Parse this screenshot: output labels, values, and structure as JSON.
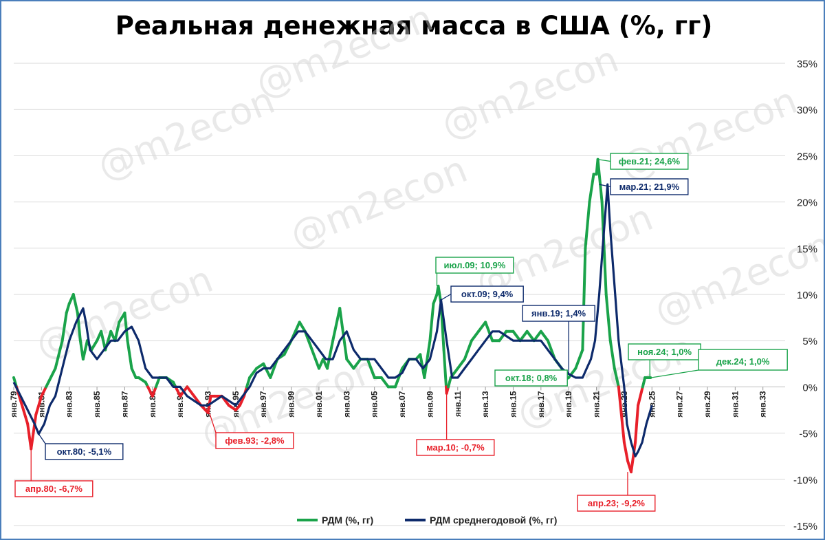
{
  "chart_data": {
    "type": "line",
    "title": "Реальная денежная масса в США (%, гг)",
    "watermark": "@m2econ",
    "ylim": [
      -15,
      35
    ],
    "yticks": [
      -15,
      -10,
      -5,
      0,
      5,
      10,
      15,
      20,
      25,
      30,
      35
    ],
    "ytick_labels": [
      "-15%",
      "-10%",
      "-5%",
      "0%",
      "5%",
      "10%",
      "15%",
      "20%",
      "25%",
      "30%",
      "35%"
    ],
    "xlim": [
      1979,
      2034.6
    ],
    "xtick_labels": [
      "янв.79",
      "янв.81",
      "янв.83",
      "янв.85",
      "янв.87",
      "янв.89",
      "янв.91",
      "янв.93",
      "янв.95",
      "янв.97",
      "янв.99",
      "янв.01",
      "янв.03",
      "янв.05",
      "янв.07",
      "янв.09",
      "янв.11",
      "янв.13",
      "янв.15",
      "янв.17",
      "янв.19",
      "янв.21",
      "янв.23",
      "янв.25",
      "янв.27",
      "янв.29",
      "янв.31",
      "янв.33"
    ],
    "grid": true,
    "legend_position": "bottom",
    "colors": {
      "positive": "#1aa34a",
      "negative": "#e8202a",
      "average": "#0d2a6b"
    },
    "series": [
      {
        "name": "РДМ (%, гг)",
        "x": [
          1979,
          1979.5,
          1980,
          1980.25,
          1980.6,
          1981,
          1981.5,
          1982,
          1982.5,
          1982.8,
          1983,
          1983.3,
          1983.6,
          1983.8,
          1984,
          1984.3,
          1984.6,
          1985,
          1985.3,
          1985.6,
          1986,
          1986.3,
          1986.6,
          1987,
          1987.2,
          1987.5,
          1987.8,
          1988,
          1988.5,
          1989,
          1989.5,
          1990,
          1990.5,
          1991,
          1991.5,
          1992,
          1992.5,
          1993,
          1993.2,
          1993.5,
          1994,
          1994.5,
          1995,
          1995.3,
          1995.6,
          1996,
          1996.5,
          1997,
          1997.5,
          1998,
          1998.5,
          1999,
          1999.3,
          1999.6,
          2000,
          2000.5,
          2001,
          2001.3,
          2001.6,
          2002,
          2002.5,
          2003,
          2003.5,
          2004,
          2004.5,
          2005,
          2005.5,
          2006,
          2006.5,
          2007,
          2007.5,
          2008,
          2008.3,
          2008.6,
          2009,
          2009.25,
          2009.5,
          2009.6,
          2009.8,
          2010,
          2010.2,
          2010.5,
          2011,
          2011.5,
          2012,
          2012.5,
          2013,
          2013.5,
          2014,
          2014.5,
          2015,
          2015.5,
          2016,
          2016.5,
          2017,
          2017.5,
          2018,
          2018.5,
          2018.75,
          2019,
          2019.5,
          2020,
          2020.2,
          2020.5,
          2020.8,
          2021,
          2021.1,
          2021.4,
          2021.7,
          2022,
          2022.3,
          2022.6,
          2023,
          2023.25,
          2023.5,
          2023.8,
          2024,
          2024.5,
          2024.9
        ],
        "values": [
          1,
          -1.5,
          -4,
          -6.7,
          -3,
          -1,
          0.5,
          2,
          5,
          8,
          9,
          10,
          8,
          5,
          3,
          5,
          4,
          5,
          6,
          4,
          6,
          5,
          7,
          8,
          5,
          2,
          1,
          1,
          0.5,
          -1,
          1,
          1,
          0.5,
          -1,
          0,
          -1,
          -2,
          -2.8,
          -1,
          -1,
          -1,
          -2,
          -2.5,
          -2,
          -1,
          1,
          2,
          2.5,
          1,
          3,
          3.5,
          5,
          6,
          7,
          6,
          4,
          2,
          3,
          2,
          5,
          8.5,
          3,
          2,
          3,
          3,
          1,
          1,
          0,
          0,
          2,
          3,
          3,
          3.5,
          1,
          5,
          9,
          10,
          10.9,
          9,
          4,
          -0.7,
          1,
          2,
          3,
          5,
          6,
          7,
          5,
          5,
          6,
          6,
          5,
          6,
          5,
          6,
          5,
          3,
          2,
          0.8,
          1,
          2,
          4,
          15,
          20,
          23,
          23,
          24.6,
          20,
          10,
          5,
          2,
          0,
          -6,
          -8,
          -9.2,
          -6,
          -2,
          1,
          1
        ]
      },
      {
        "name": "РДМ среднегодовой (%, гг)",
        "x": [
          1979,
          1979.5,
          1980,
          1980.5,
          1980.8,
          1981.2,
          1981.6,
          1982,
          1982.5,
          1983,
          1983.5,
          1984,
          1984.2,
          1984.5,
          1985,
          1985.5,
          1986,
          1986.5,
          1987,
          1987.5,
          1988,
          1988.5,
          1989,
          1989.5,
          1990,
          1990.5,
          1991,
          1991.5,
          1992,
          1992.5,
          1993,
          1993.5,
          1994,
          1994.5,
          1995,
          1995.5,
          1996,
          1996.5,
          1997,
          1997.5,
          1998,
          1998.5,
          1999,
          1999.5,
          2000,
          2000.5,
          2001,
          2001.5,
          2002,
          2002.5,
          2003,
          2003.5,
          2004,
          2004.5,
          2005,
          2005.5,
          2006,
          2006.5,
          2007,
          2007.5,
          2008,
          2008.5,
          2009,
          2009.5,
          2009.8,
          2010.2,
          2010.6,
          2011,
          2011.5,
          2012,
          2012.5,
          2013,
          2013.5,
          2014,
          2014.5,
          2015,
          2015.5,
          2016,
          2016.5,
          2017,
          2017.5,
          2018,
          2018.5,
          2019,
          2019.5,
          2020,
          2020.3,
          2020.6,
          2020.9,
          2021.2,
          2021.5,
          2021.8,
          2022,
          2022.3,
          2022.6,
          2023,
          2023.2,
          2023.5,
          2023.8,
          2024,
          2024.3,
          2024.6,
          2025
        ],
        "values": [
          0.5,
          -1,
          -2.5,
          -4,
          -5.1,
          -4,
          -2,
          -1,
          2,
          5,
          7,
          8.5,
          7,
          4,
          3,
          4,
          5,
          5,
          6,
          6.5,
          5,
          2,
          1,
          1,
          1,
          0,
          0,
          -1,
          -1.5,
          -2,
          -2,
          -1.5,
          -1,
          -1.5,
          -2,
          -1,
          0,
          1.5,
          2,
          2,
          3,
          4,
          5,
          6,
          6,
          5,
          4,
          3,
          3,
          5,
          6,
          4,
          3,
          3,
          3,
          2,
          1,
          1,
          1.5,
          3,
          3,
          2,
          3,
          6,
          9.4,
          5,
          1,
          1,
          2,
          3,
          4,
          5,
          6,
          6,
          5.5,
          5,
          5,
          5,
          5,
          5,
          4,
          3,
          2,
          1.4,
          1,
          1,
          2,
          3,
          5,
          10,
          16,
          21.9,
          17,
          11,
          5,
          0,
          -4,
          -6,
          -7.5,
          -7,
          -6,
          -4,
          -2
        ]
      }
    ],
    "annotations": [
      {
        "text": "апр.80; -6,7%",
        "x": 1980.25,
        "y": -6.7,
        "color": "red"
      },
      {
        "text": "окт.80; -5,1%",
        "x": 1980.8,
        "y": -5.1,
        "color": "navy"
      },
      {
        "text": "фев.93; -2,8%",
        "x": 1993.1,
        "y": -2.8,
        "color": "red"
      },
      {
        "text": "июл.09; 10,9%",
        "x": 2009.5,
        "y": 10.9,
        "color": "green"
      },
      {
        "text": "окт.09; 9,4%",
        "x": 2009.8,
        "y": 9.4,
        "color": "navy"
      },
      {
        "text": "мар.10; -0,7%",
        "x": 2010.2,
        "y": -0.7,
        "color": "red"
      },
      {
        "text": "янв.19; 1,4%",
        "x": 2019.0,
        "y": 1.4,
        "color": "navy"
      },
      {
        "text": "окт.18; 0,8%",
        "x": 2018.75,
        "y": 0.8,
        "color": "green"
      },
      {
        "text": "фев.21; 24,6%",
        "x": 2021.1,
        "y": 24.6,
        "color": "green"
      },
      {
        "text": "мар.21; 21,9%",
        "x": 2021.2,
        "y": 21.9,
        "color": "navy"
      },
      {
        "text": "апр.23; -9,2%",
        "x": 2023.25,
        "y": -9.2,
        "color": "red"
      },
      {
        "text": "ноя.24; 1,0%",
        "x": 2024.85,
        "y": 1.0,
        "color": "green"
      },
      {
        "text": "дек.24; 1,0%",
        "x": 2024.95,
        "y": 1.0,
        "color": "green",
        "large": true
      }
    ]
  }
}
